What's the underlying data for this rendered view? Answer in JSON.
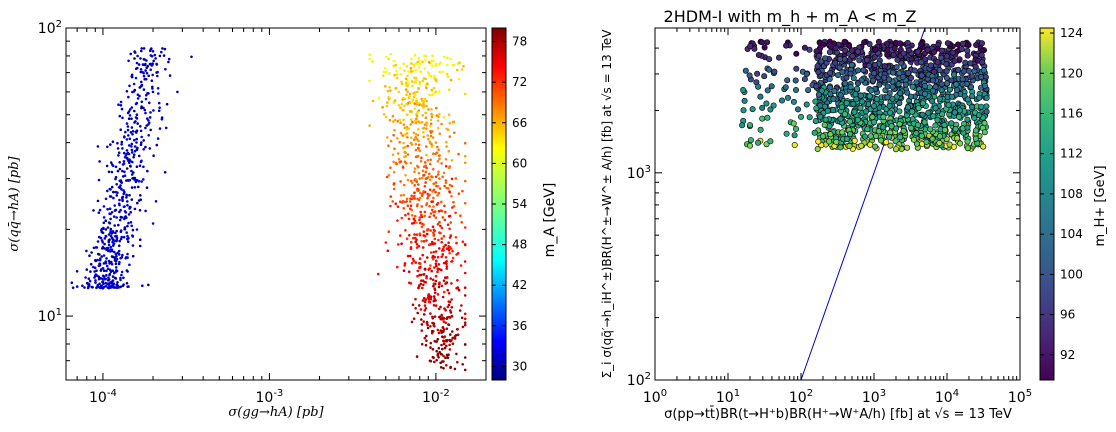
{
  "chart_data": [
    {
      "type": "scatter",
      "title": "",
      "xlabel": "σ(gg→hA) [pb]",
      "ylabel": "σ(qq̄→hA) [pb]",
      "xscale": "log",
      "yscale": "log",
      "xlim": [
        6e-05,
        0.02
      ],
      "ylim": [
        6,
        100
      ],
      "x_tick_labels": [
        "10^-4",
        "10^-3",
        "10^-2"
      ],
      "y_tick_labels": [
        "10^1",
        "10^2"
      ],
      "colorbar": {
        "label": "m_A [GeV]",
        "range": [
          28,
          80
        ],
        "ticks": [
          30,
          36,
          42,
          48,
          54,
          60,
          66,
          72,
          78
        ],
        "colormap": "jet"
      },
      "series": [
        {
          "x_range": [
            6.5e-05,
            0.00035
          ],
          "y_range": [
            12.5,
            85
          ],
          "color_value_range": [
            28,
            34
          ],
          "points": [
            [
              7e-05,
              14.3
            ],
            [
              8e-05,
              14.5
            ],
            [
              9e-05,
              13.8
            ],
            [
              0.0001,
              13.2
            ],
            [
              0.00011,
              14.0
            ],
            [
              0.00012,
              15.5
            ],
            [
              0.000105,
              17.0
            ],
            [
              0.000115,
              19.5
            ],
            [
              0.00013,
              22.0
            ],
            [
              0.00014,
              25.0
            ],
            [
              0.000125,
              28.0
            ],
            [
              0.00015,
              31.0
            ],
            [
              0.00016,
              33.0
            ],
            [
              0.00015,
              37.0
            ],
            [
              0.00017,
              40.0
            ],
            [
              0.00018,
              45.0
            ],
            [
              0.00016,
              50.0
            ],
            [
              0.00019,
              55.0
            ],
            [
              0.0002,
              60.0
            ],
            [
              0.00017,
              65.0
            ],
            [
              0.00021,
              70.0
            ],
            [
              0.00018,
              75.0
            ],
            [
              0.00022,
              80.0
            ],
            [
              0.0002,
              83.0
            ],
            [
              0.00025,
              78.0
            ],
            [
              0.00028,
              60.0
            ],
            [
              0.00013,
              16.0
            ],
            [
              0.00014,
              18.5
            ],
            [
              0.00011,
              21.0
            ],
            [
              0.00024,
              45.0
            ]
          ]
        },
        {
          "x_range": [
            0.004,
            0.015
          ],
          "y_range": [
            6.5,
            82
          ],
          "color_value_range": [
            62,
            80
          ],
          "points": [
            [
              0.0045,
              14.0
            ],
            [
              0.005,
              18.0
            ],
            [
              0.0055,
              25.0
            ],
            [
              0.006,
              35.0
            ],
            [
              0.0065,
              45.0
            ],
            [
              0.007,
              55.0
            ],
            [
              0.0075,
              65.0
            ],
            [
              0.008,
              75.0
            ],
            [
              0.0085,
              80.0
            ],
            [
              0.009,
              70.0
            ],
            [
              0.0095,
              50.0
            ],
            [
              0.01,
              40.0
            ],
            [
              0.0105,
              30.0
            ],
            [
              0.011,
              22.0
            ],
            [
              0.0115,
              16.0
            ],
            [
              0.012,
              12.0
            ],
            [
              0.0125,
              10.0
            ],
            [
              0.013,
              8.5
            ],
            [
              0.0135,
              9.0
            ],
            [
              0.0145,
              6.8
            ],
            [
              0.008,
              30.0
            ],
            [
              0.009,
              20.0
            ],
            [
              0.007,
              25.0
            ],
            [
              0.01,
              60.0
            ],
            [
              0.0115,
              35.0
            ],
            [
              0.0065,
              15.0
            ],
            [
              0.0085,
              45.0
            ],
            [
              0.0105,
              75.0
            ],
            [
              0.012,
              50.0
            ],
            [
              0.006,
              60.0
            ]
          ]
        }
      ]
    },
    {
      "type": "scatter",
      "title": "2HDM-I with m_h + m_A < m_Z",
      "xlabel": "σ(pp→tt̄)BR(t→H⁺b)BR(H⁺→W⁺A/h) [fb] at √s = 13 TeV",
      "ylabel": "Σ_i σ(qq̄′→h_iH^±)BR(H^±→W^± A/h) [fb] at √s = 13 TeV",
      "xscale": "log",
      "yscale": "log",
      "xlim": [
        1,
        100000
      ],
      "ylim": [
        100,
        5000
      ],
      "x_tick_labels": [
        "10^0",
        "10^1",
        "10^2",
        "10^3",
        "10^4",
        "10^5"
      ],
      "y_tick_labels": [
        "10^2",
        "10^3"
      ],
      "colorbar": {
        "label": "m_H+ [GeV]",
        "range": [
          89.5,
          124.5
        ],
        "ticks": [
          92,
          96,
          100,
          104,
          108,
          112,
          116,
          120,
          124
        ],
        "colormap": "viridis"
      },
      "reference_line": {
        "points": [
          [
            100,
            100
          ],
          [
            5000,
            5000
          ]
        ],
        "color": "#0000cc"
      },
      "series": [
        {
          "x_range": [
            15,
            40000
          ],
          "y_range": [
            1300,
            4300
          ],
          "color_value_range": [
            90,
            124
          ],
          "points": [
            [
              20,
              1350
            ],
            [
              20,
              1700
            ],
            [
              35,
              2500
            ],
            [
              50,
              3600
            ],
            [
              80,
              2200
            ],
            [
              120,
              3000
            ],
            [
              200,
              1500
            ],
            [
              300,
              4000
            ],
            [
              400,
              2700
            ],
            [
              600,
              1800
            ],
            [
              800,
              3500
            ],
            [
              1000,
              2100
            ],
            [
              1500,
              4200
            ],
            [
              2000,
              1300
            ],
            [
              2500,
              2900
            ],
            [
              3000,
              3900
            ],
            [
              4000,
              1700
            ],
            [
              5000,
              2400
            ],
            [
              6000,
              3300
            ],
            [
              8000,
              1500
            ],
            [
              10000,
              2700
            ],
            [
              12000,
              3800
            ],
            [
              15000,
              2000
            ],
            [
              20000,
              3100
            ],
            [
              25000,
              1600
            ],
            [
              30000,
              3700
            ],
            [
              35000,
              2300
            ],
            [
              500,
              3900
            ],
            [
              900,
              1500
            ],
            [
              1800,
              2600
            ]
          ]
        }
      ]
    }
  ]
}
